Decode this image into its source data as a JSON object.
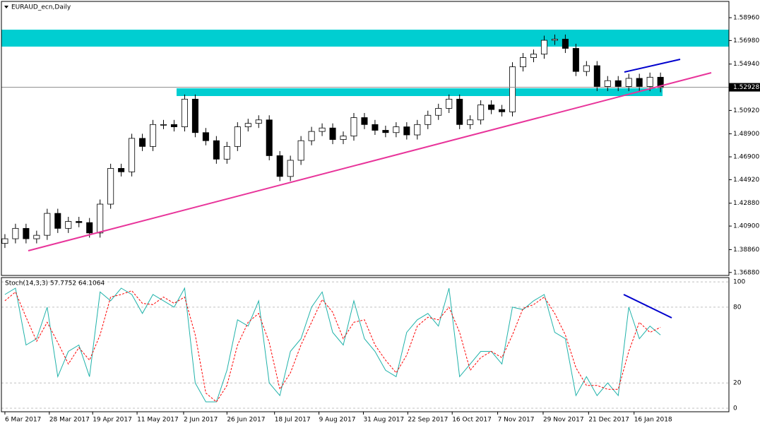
{
  "chart_data": [
    {
      "type": "candlestick",
      "title": "EURAUD_ecn,Daily",
      "open": [
        1.394,
        1.398,
        1.407,
        1.398,
        1.401,
        1.42,
        1.407,
        1.413,
        1.412,
        1.403,
        1.428,
        1.459,
        1.456,
        1.485,
        1.478,
        1.497,
        1.497,
        1.495,
        1.519,
        1.49,
        1.483,
        1.467,
        1.478,
        1.495,
        1.498,
        1.501,
        1.47,
        1.452,
        1.466,
        1.483,
        1.491,
        1.494,
        1.484,
        1.487,
        1.503,
        1.497,
        1.492,
        1.49,
        1.495,
        1.488,
        1.497,
        1.505,
        1.511,
        1.519,
        1.497,
        1.501,
        1.514,
        1.51,
        1.508,
        1.547,
        1.555,
        1.558,
        1.57,
        1.571,
        1.563,
        1.543,
        1.548,
        1.53,
        1.535,
        1.53,
        1.537,
        1.53,
        1.538
      ],
      "high": [
        1.402,
        1.411,
        1.411,
        1.405,
        1.424,
        1.424,
        1.417,
        1.417,
        1.416,
        1.432,
        1.463,
        1.463,
        1.489,
        1.489,
        1.501,
        1.501,
        1.501,
        1.523,
        1.523,
        1.494,
        1.487,
        1.482,
        1.499,
        1.502,
        1.505,
        1.505,
        1.474,
        1.47,
        1.487,
        1.495,
        1.498,
        1.498,
        1.491,
        1.507,
        1.507,
        1.501,
        1.496,
        1.499,
        1.499,
        1.501,
        1.509,
        1.515,
        1.523,
        1.523,
        1.505,
        1.518,
        1.518,
        1.514,
        1.551,
        1.559,
        1.562,
        1.574,
        1.575,
        1.575,
        1.567,
        1.552,
        1.552,
        1.539,
        1.539,
        1.541,
        1.541,
        1.542,
        1.542
      ],
      "low": [
        1.39,
        1.394,
        1.394,
        1.394,
        1.397,
        1.403,
        1.403,
        1.408,
        1.399,
        1.399,
        1.424,
        1.452,
        1.452,
        1.474,
        1.474,
        1.493,
        1.491,
        1.491,
        1.486,
        1.479,
        1.463,
        1.463,
        1.474,
        1.491,
        1.494,
        1.466,
        1.448,
        1.448,
        1.462,
        1.479,
        1.487,
        1.48,
        1.48,
        1.483,
        1.493,
        1.488,
        1.486,
        1.486,
        1.484,
        1.484,
        1.493,
        1.501,
        1.507,
        1.493,
        1.493,
        1.497,
        1.506,
        1.504,
        1.504,
        1.543,
        1.551,
        1.554,
        1.566,
        1.559,
        1.539,
        1.539,
        1.526,
        1.526,
        1.526,
        1.526,
        1.526,
        1.526,
        1.525
      ],
      "close": [
        1.398,
        1.407,
        1.398,
        1.401,
        1.42,
        1.407,
        1.413,
        1.412,
        1.403,
        1.428,
        1.459,
        1.456,
        1.485,
        1.478,
        1.497,
        1.497,
        1.495,
        1.519,
        1.49,
        1.483,
        1.467,
        1.478,
        1.495,
        1.498,
        1.501,
        1.47,
        1.452,
        1.466,
        1.483,
        1.491,
        1.494,
        1.484,
        1.487,
        1.503,
        1.497,
        1.492,
        1.49,
        1.495,
        1.488,
        1.497,
        1.505,
        1.511,
        1.519,
        1.497,
        1.501,
        1.514,
        1.51,
        1.508,
        1.547,
        1.555,
        1.558,
        1.57,
        1.571,
        1.563,
        1.543,
        1.548,
        1.53,
        1.535,
        1.53,
        1.537,
        1.53,
        1.538,
        1.529
      ],
      "up_color": "#ffffff",
      "down_color": "#000000",
      "current_price": 1.52928,
      "xlim": [
        -0.33,
        68.47
      ],
      "ylim": [
        1.3662,
        1.6037
      ],
      "yticks": [
        {
          "value": 1.5896,
          "label": "1.58960"
        },
        {
          "value": 1.5698,
          "label": "1.56980"
        },
        {
          "value": 1.5494,
          "label": "1.54940"
        },
        {
          "value": 1.5092,
          "label": "1.50920"
        },
        {
          "value": 1.489,
          "label": "1.48900"
        },
        {
          "value": 1.469,
          "label": "1.46900"
        },
        {
          "value": 1.4492,
          "label": "1.44920"
        },
        {
          "value": 1.4288,
          "label": "1.42880"
        },
        {
          "value": 1.409,
          "label": "1.40900"
        },
        {
          "value": 1.3886,
          "label": "1.38860"
        },
        {
          "value": 1.3688,
          "label": "1.36880"
        }
      ]
    },
    {
      "type": "line",
      "title": "Stoch(14,3,3) 57.7752 64.1064",
      "series": [
        {
          "color": "#20b2aa",
          "values": [
            90,
            95,
            50,
            55,
            80,
            25,
            45,
            50,
            25,
            92,
            85,
            95,
            90,
            75,
            90,
            85,
            80,
            95,
            20,
            5,
            5,
            30,
            70,
            65,
            85,
            20,
            10,
            45,
            55,
            80,
            92,
            60,
            50,
            85,
            55,
            45,
            30,
            25,
            60,
            70,
            75,
            65,
            95,
            25,
            35,
            45,
            45,
            35,
            80,
            78,
            85,
            90,
            60,
            55,
            10,
            25,
            10,
            20,
            10,
            80,
            55,
            65,
            58
          ]
        },
        {
          "color": "#ff0000",
          "values": [
            85,
            92,
            72,
            53,
            68,
            52,
            35,
            48,
            38,
            58,
            88,
            90,
            93,
            83,
            82,
            88,
            83,
            88,
            58,
            12,
            5,
            18,
            50,
            68,
            75,
            52,
            15,
            28,
            50,
            68,
            86,
            76,
            55,
            68,
            70,
            50,
            38,
            28,
            42,
            65,
            72,
            70,
            80,
            60,
            30,
            40,
            45,
            40,
            58,
            79,
            82,
            88,
            75,
            58,
            32,
            18,
            18,
            15,
            15,
            45,
            68,
            60,
            64
          ]
        }
      ],
      "xlim": [
        -0.33,
        68.47
      ],
      "ylim": [
        -2.8,
        103.4
      ],
      "yticks": [
        100,
        80,
        20,
        0
      ],
      "xticks": [
        {
          "value": 0,
          "label": "6 Mar 2017"
        },
        {
          "value": 4.2,
          "label": "28 Mar 2017"
        },
        {
          "value": 8.3,
          "label": "19 Apr 2017"
        },
        {
          "value": 12.5,
          "label": "11 May 2017"
        },
        {
          "value": 16.9,
          "label": "2 Jun 2017"
        },
        {
          "value": 21,
          "label": "26 Jun 2017"
        },
        {
          "value": 25.5,
          "label": "18 Jul 2017"
        },
        {
          "value": 29.7,
          "label": "9 Aug 2017"
        },
        {
          "value": 33.9,
          "label": "31 Aug 2017"
        },
        {
          "value": 38.1,
          "label": "22 Sep 2017"
        },
        {
          "value": 42.3,
          "label": "16 Oct 2017"
        },
        {
          "value": 46.6,
          "label": "7 Nov 2017"
        },
        {
          "value": 50.9,
          "label": "29 Nov 2017"
        },
        {
          "value": 55.2,
          "label": "21 Dec 2017"
        },
        {
          "value": 59.5,
          "label": "16 Jan 2018"
        }
      ]
    }
  ]
}
